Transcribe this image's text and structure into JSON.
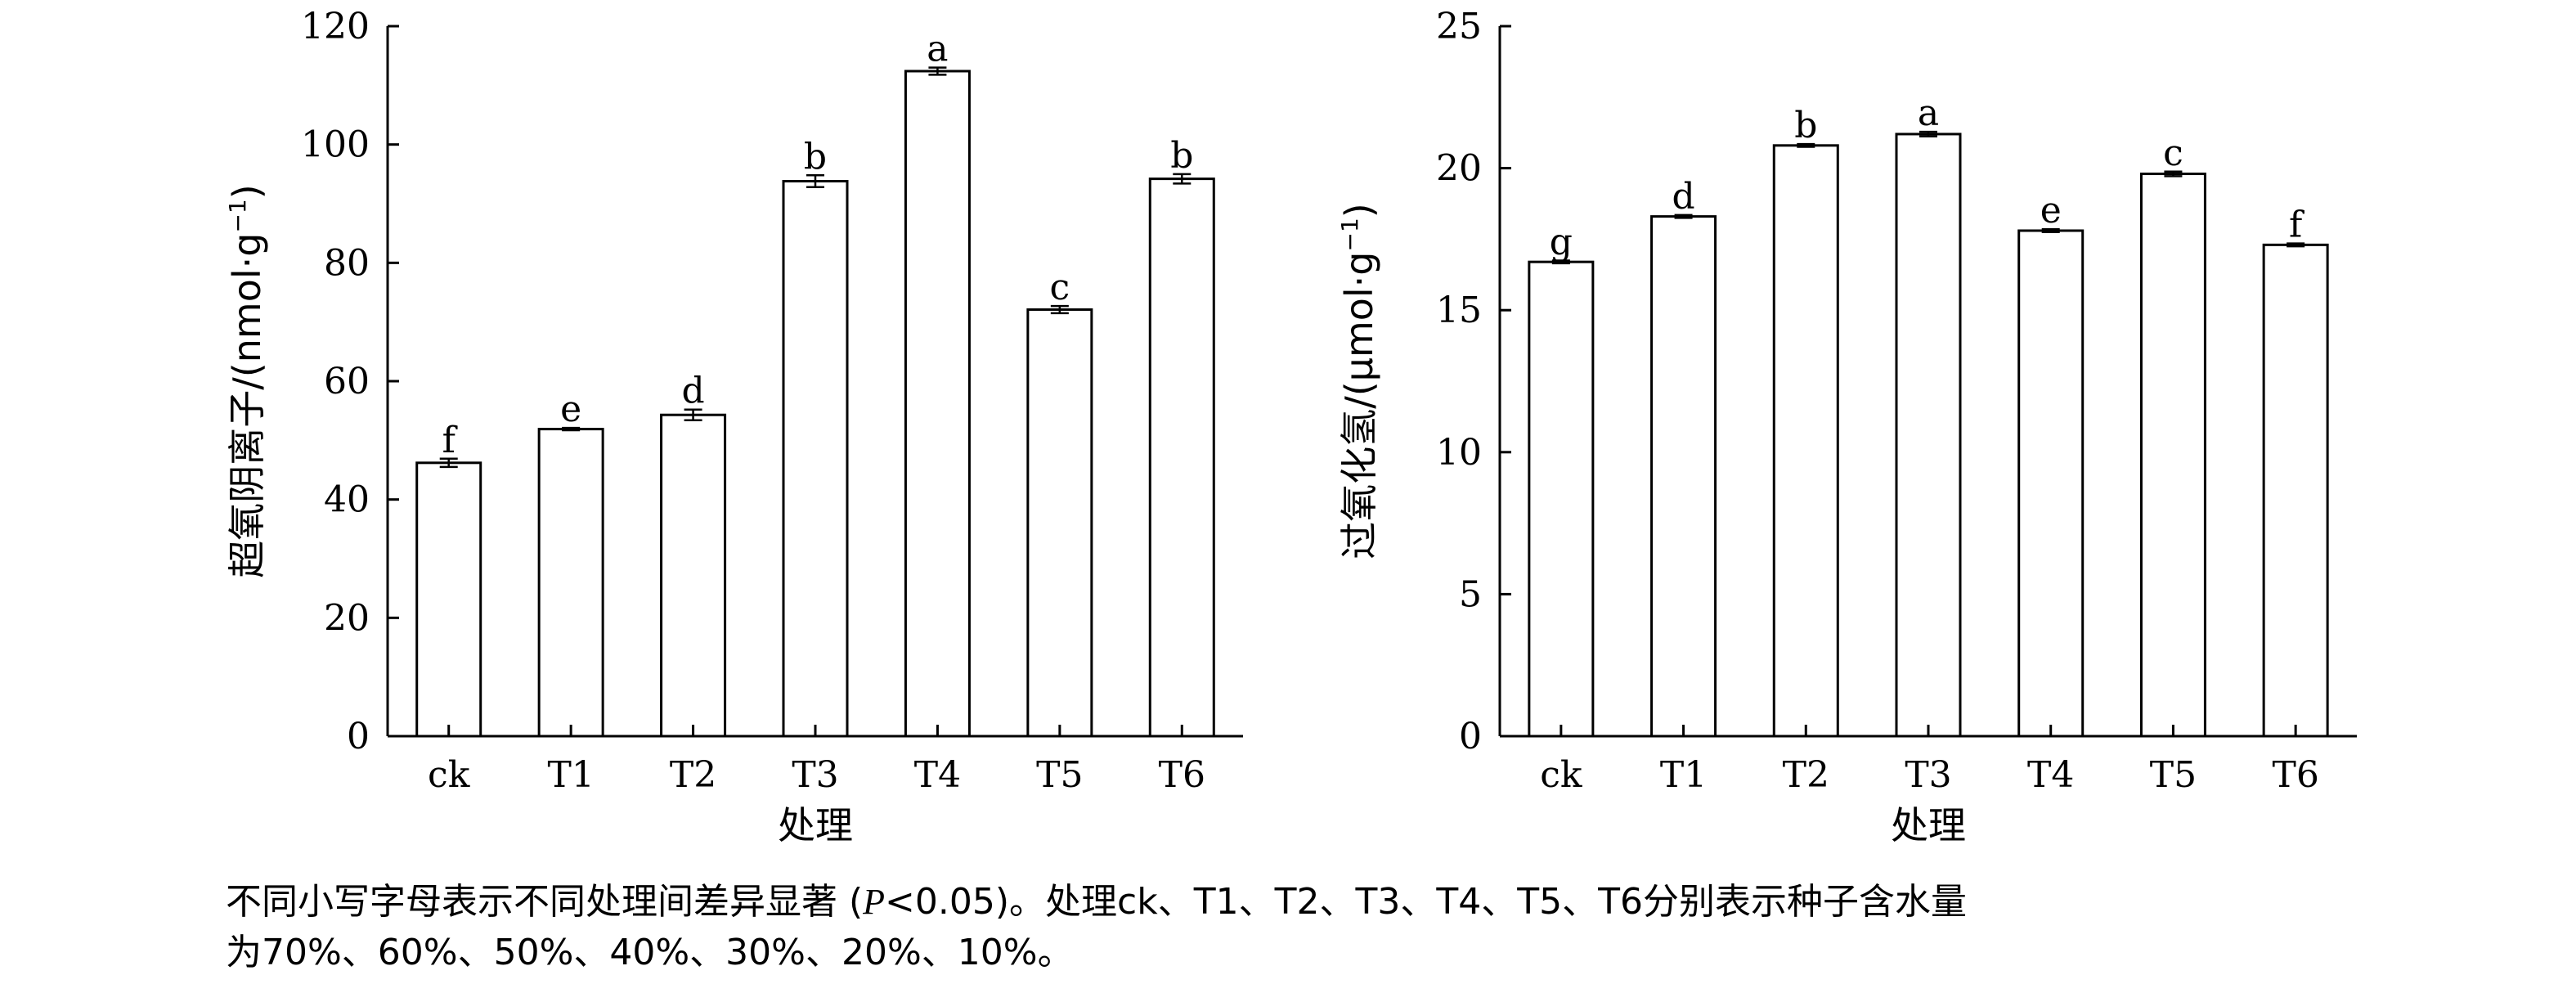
{
  "chart_data": [
    {
      "type": "bar",
      "categories": [
        "ck",
        "T1",
        "T2",
        "T3",
        "T4",
        "T5",
        "T6"
      ],
      "values": [
        46.2,
        51.9,
        54.3,
        93.8,
        112.4,
        72.1,
        94.2
      ],
      "errors": [
        0.7,
        0.2,
        0.9,
        1.0,
        0.6,
        0.6,
        0.8
      ],
      "labels": [
        "f",
        "e",
        "d",
        "b",
        "a",
        "c",
        "b"
      ],
      "xlabel": "处理",
      "ylabel_main": "超氧阴离子/(nmol",
      "ylabel_sep": "·",
      "ylabel_unit": "g",
      "ylabel_sup": "−1",
      "ylabel_close": ")",
      "ylim": [
        0,
        120
      ],
      "yticks": [
        "0",
        "20",
        "40",
        "60",
        "80",
        "100",
        "120"
      ],
      "grid": false
    },
    {
      "type": "bar",
      "categories": [
        "ck",
        "T1",
        "T2",
        "T3",
        "T4",
        "T5",
        "T6"
      ],
      "values": [
        16.7,
        18.3,
        20.8,
        21.2,
        17.8,
        19.8,
        17.3
      ],
      "errors": [
        0.05,
        0.05,
        0.05,
        0.08,
        0.05,
        0.08,
        0.05
      ],
      "labels": [
        "g",
        "d",
        "b",
        "a",
        "e",
        "c",
        "f"
      ],
      "xlabel": "处理",
      "ylabel_main": "过氧化氢/(μmol",
      "ylabel_sep": "·",
      "ylabel_unit": "g",
      "ylabel_sup": "−1",
      "ylabel_close": ")",
      "ylim": [
        0,
        25
      ],
      "yticks": [
        "0",
        "5",
        "10",
        "15",
        "20",
        "25"
      ],
      "grid": false
    }
  ],
  "caption": {
    "line1_a": "不同小写字母表示不同处理间差异显著 (",
    "line1_p": "P",
    "line1_b": "<0.05)。处理ck、T1、T2、T3、T4、T5、T6分别表示种子含水量",
    "line2": "为70%、60%、50%、40%、30%、20%、10%。"
  }
}
